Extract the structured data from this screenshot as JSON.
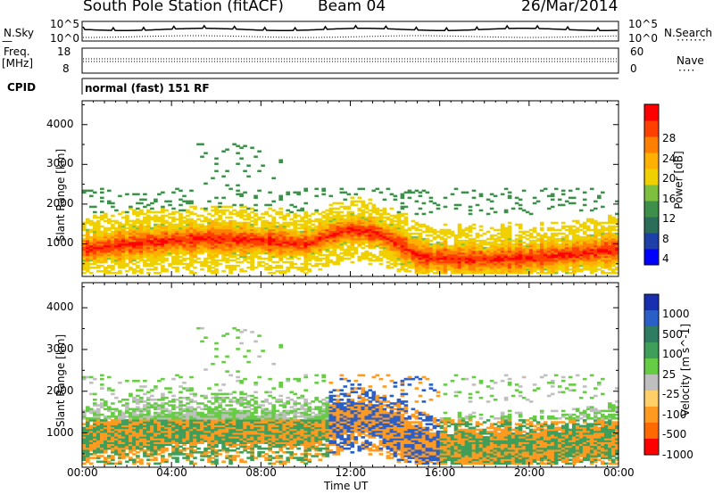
{
  "header": {
    "title": "South Pole Station (fitACF)",
    "beam": "Beam 04",
    "date": "26/Mar/2014"
  },
  "top_panel": {
    "left_label": "N.Sky",
    "right_label": "N.Search",
    "y_top_tick": "10^5",
    "y_bottom_tick": "10^0",
    "freq_label": "Freq.",
    "freq_unit": "[MHz]",
    "freq_ticks": [
      "18",
      "8"
    ],
    "nave_label": "Nave",
    "nave_ticks": [
      "60",
      "0"
    ],
    "cpid_label": "CPID",
    "cpid_value": "normal (fast) 151 RF"
  },
  "chart_data": [
    {
      "type": "heatmap",
      "name": "Power",
      "ylabel": "Slant Range [km]",
      "yticks": [
        1000,
        2000,
        3000,
        4000
      ],
      "ylim": [
        180,
        4600
      ],
      "xlim_hours": [
        0,
        24
      ],
      "colorbar": {
        "label": "Power [dB]",
        "ticks": [
          "4",
          "8",
          "12",
          "16",
          "20",
          "24",
          "28"
        ],
        "colors": [
          "#0000ff",
          "#1e3fa8",
          "#2a6e5a",
          "#3d8f4a",
          "#7fbf3f",
          "#f0d000",
          "#ffb000",
          "#ff8000",
          "#ff4000",
          "#ff0000"
        ]
      }
    },
    {
      "type": "heatmap",
      "name": "Velocity",
      "ylabel": "Slant Range [km]",
      "yticks": [
        1000,
        2000,
        3000,
        4000
      ],
      "ylim": [
        180,
        4600
      ],
      "xlim_hours": [
        0,
        24
      ],
      "colorbar": {
        "label": "Velocity [m s^-1]",
        "ticks": [
          "1000",
          "500",
          "100",
          "25",
          "-25",
          "-100",
          "-500",
          "-1000"
        ],
        "colors": [
          "#1a2fb0",
          "#2b5fc8",
          "#2e7d62",
          "#3f9f5a",
          "#66cc44",
          "#bfbfbf",
          "#ffd06a",
          "#ff9a20",
          "#ff6a00",
          "#ff0000"
        ]
      }
    }
  ],
  "x_axis": {
    "ticks": [
      "00:00",
      "04:00",
      "08:00",
      "12:00",
      "16:00",
      "20:00",
      "00:00"
    ],
    "label": "Time UT"
  }
}
